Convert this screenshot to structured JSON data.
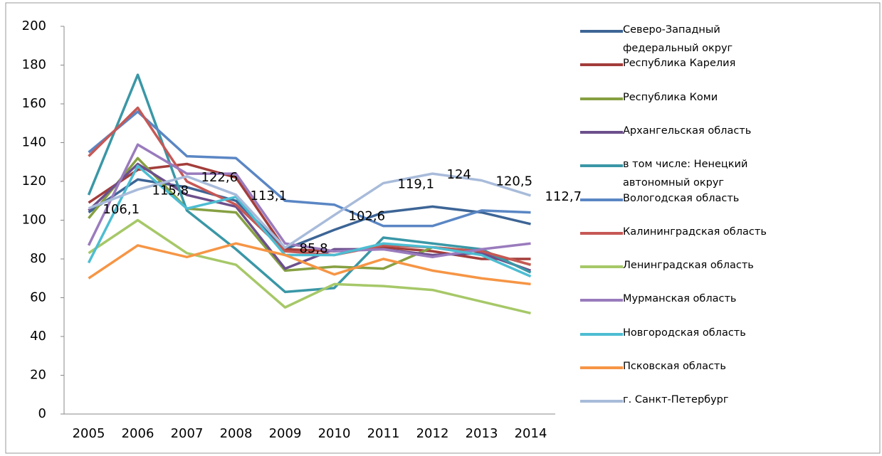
{
  "chart_data": {
    "type": "line",
    "categories": [
      "2005",
      "2006",
      "2007",
      "2008",
      "2009",
      "2010",
      "2011",
      "2012",
      "2013",
      "2014"
    ],
    "ylim": [
      0,
      200
    ],
    "yticks": [
      0,
      20,
      40,
      60,
      80,
      100,
      120,
      140,
      160,
      180,
      200
    ],
    "grid": false,
    "legend": "right",
    "series": [
      {
        "name": "Северо-Западный федеральный  округ",
        "color": "#3d6596",
        "values": [
          104,
          121,
          117,
          110,
          85,
          95,
          104,
          107,
          104,
          98
        ]
      },
      {
        "name": "Республика Карелия",
        "color": "#a33d3a",
        "values": [
          109,
          126,
          129,
          122,
          85,
          84,
          86,
          84,
          80,
          80
        ]
      },
      {
        "name": "Республика Коми",
        "color": "#86a042",
        "values": [
          101,
          132,
          106,
          104,
          74,
          76,
          75,
          86,
          84,
          77
        ]
      },
      {
        "name": "Архангельская область",
        "color": "#6c4f8c",
        "values": [
          105,
          129,
          113,
          107,
          75,
          85,
          85,
          82,
          83,
          74
        ]
      },
      {
        "name": "в том числе: Ненецкий автономный округ",
        "color": "#3a97a6",
        "values": [
          113,
          175,
          105,
          85,
          63,
          65,
          91,
          88,
          85,
          73
        ]
      },
      {
        "name": "Вологодская область",
        "color": "#5a86c4",
        "values": [
          135,
          156,
          133,
          132,
          110,
          108,
          97,
          97,
          105,
          104
        ]
      },
      {
        "name": "Калининградская область",
        "color": "#c65855",
        "values": [
          133,
          158,
          120,
          108,
          84,
          82,
          87,
          86,
          84,
          77
        ]
      },
      {
        "name": "Ленинградская область",
        "color": "#a6c868",
        "values": [
          83,
          100,
          83,
          77,
          55,
          67,
          66,
          64,
          58,
          52
        ]
      },
      {
        "name": "Мурманская область",
        "color": "#9a7bbd",
        "values": [
          87,
          139,
          124,
          124,
          88,
          84,
          85,
          81,
          85,
          88
        ]
      },
      {
        "name": "Новгородская область",
        "color": "#4dbdd2",
        "values": [
          78,
          128,
          106,
          112,
          82,
          82,
          88,
          86,
          82,
          71
        ]
      },
      {
        "name": "Псковская область",
        "color": "#f69545",
        "values": [
          70,
          87,
          81,
          88,
          82,
          72,
          80,
          74,
          70,
          67
        ]
      },
      {
        "name": "г. Санкт-Петербург",
        "color": "#a8bbda",
        "values": [
          106.1,
          115.8,
          122.6,
          113.1,
          85.8,
          102.6,
          119.1,
          124,
          120.5,
          112.7
        ],
        "value_labels": [
          "106,1",
          "115,8",
          "122,6",
          "113,1",
          "85,8",
          "102,6",
          "119,1",
          "124",
          "120,5",
          "112,7"
        ]
      }
    ]
  }
}
